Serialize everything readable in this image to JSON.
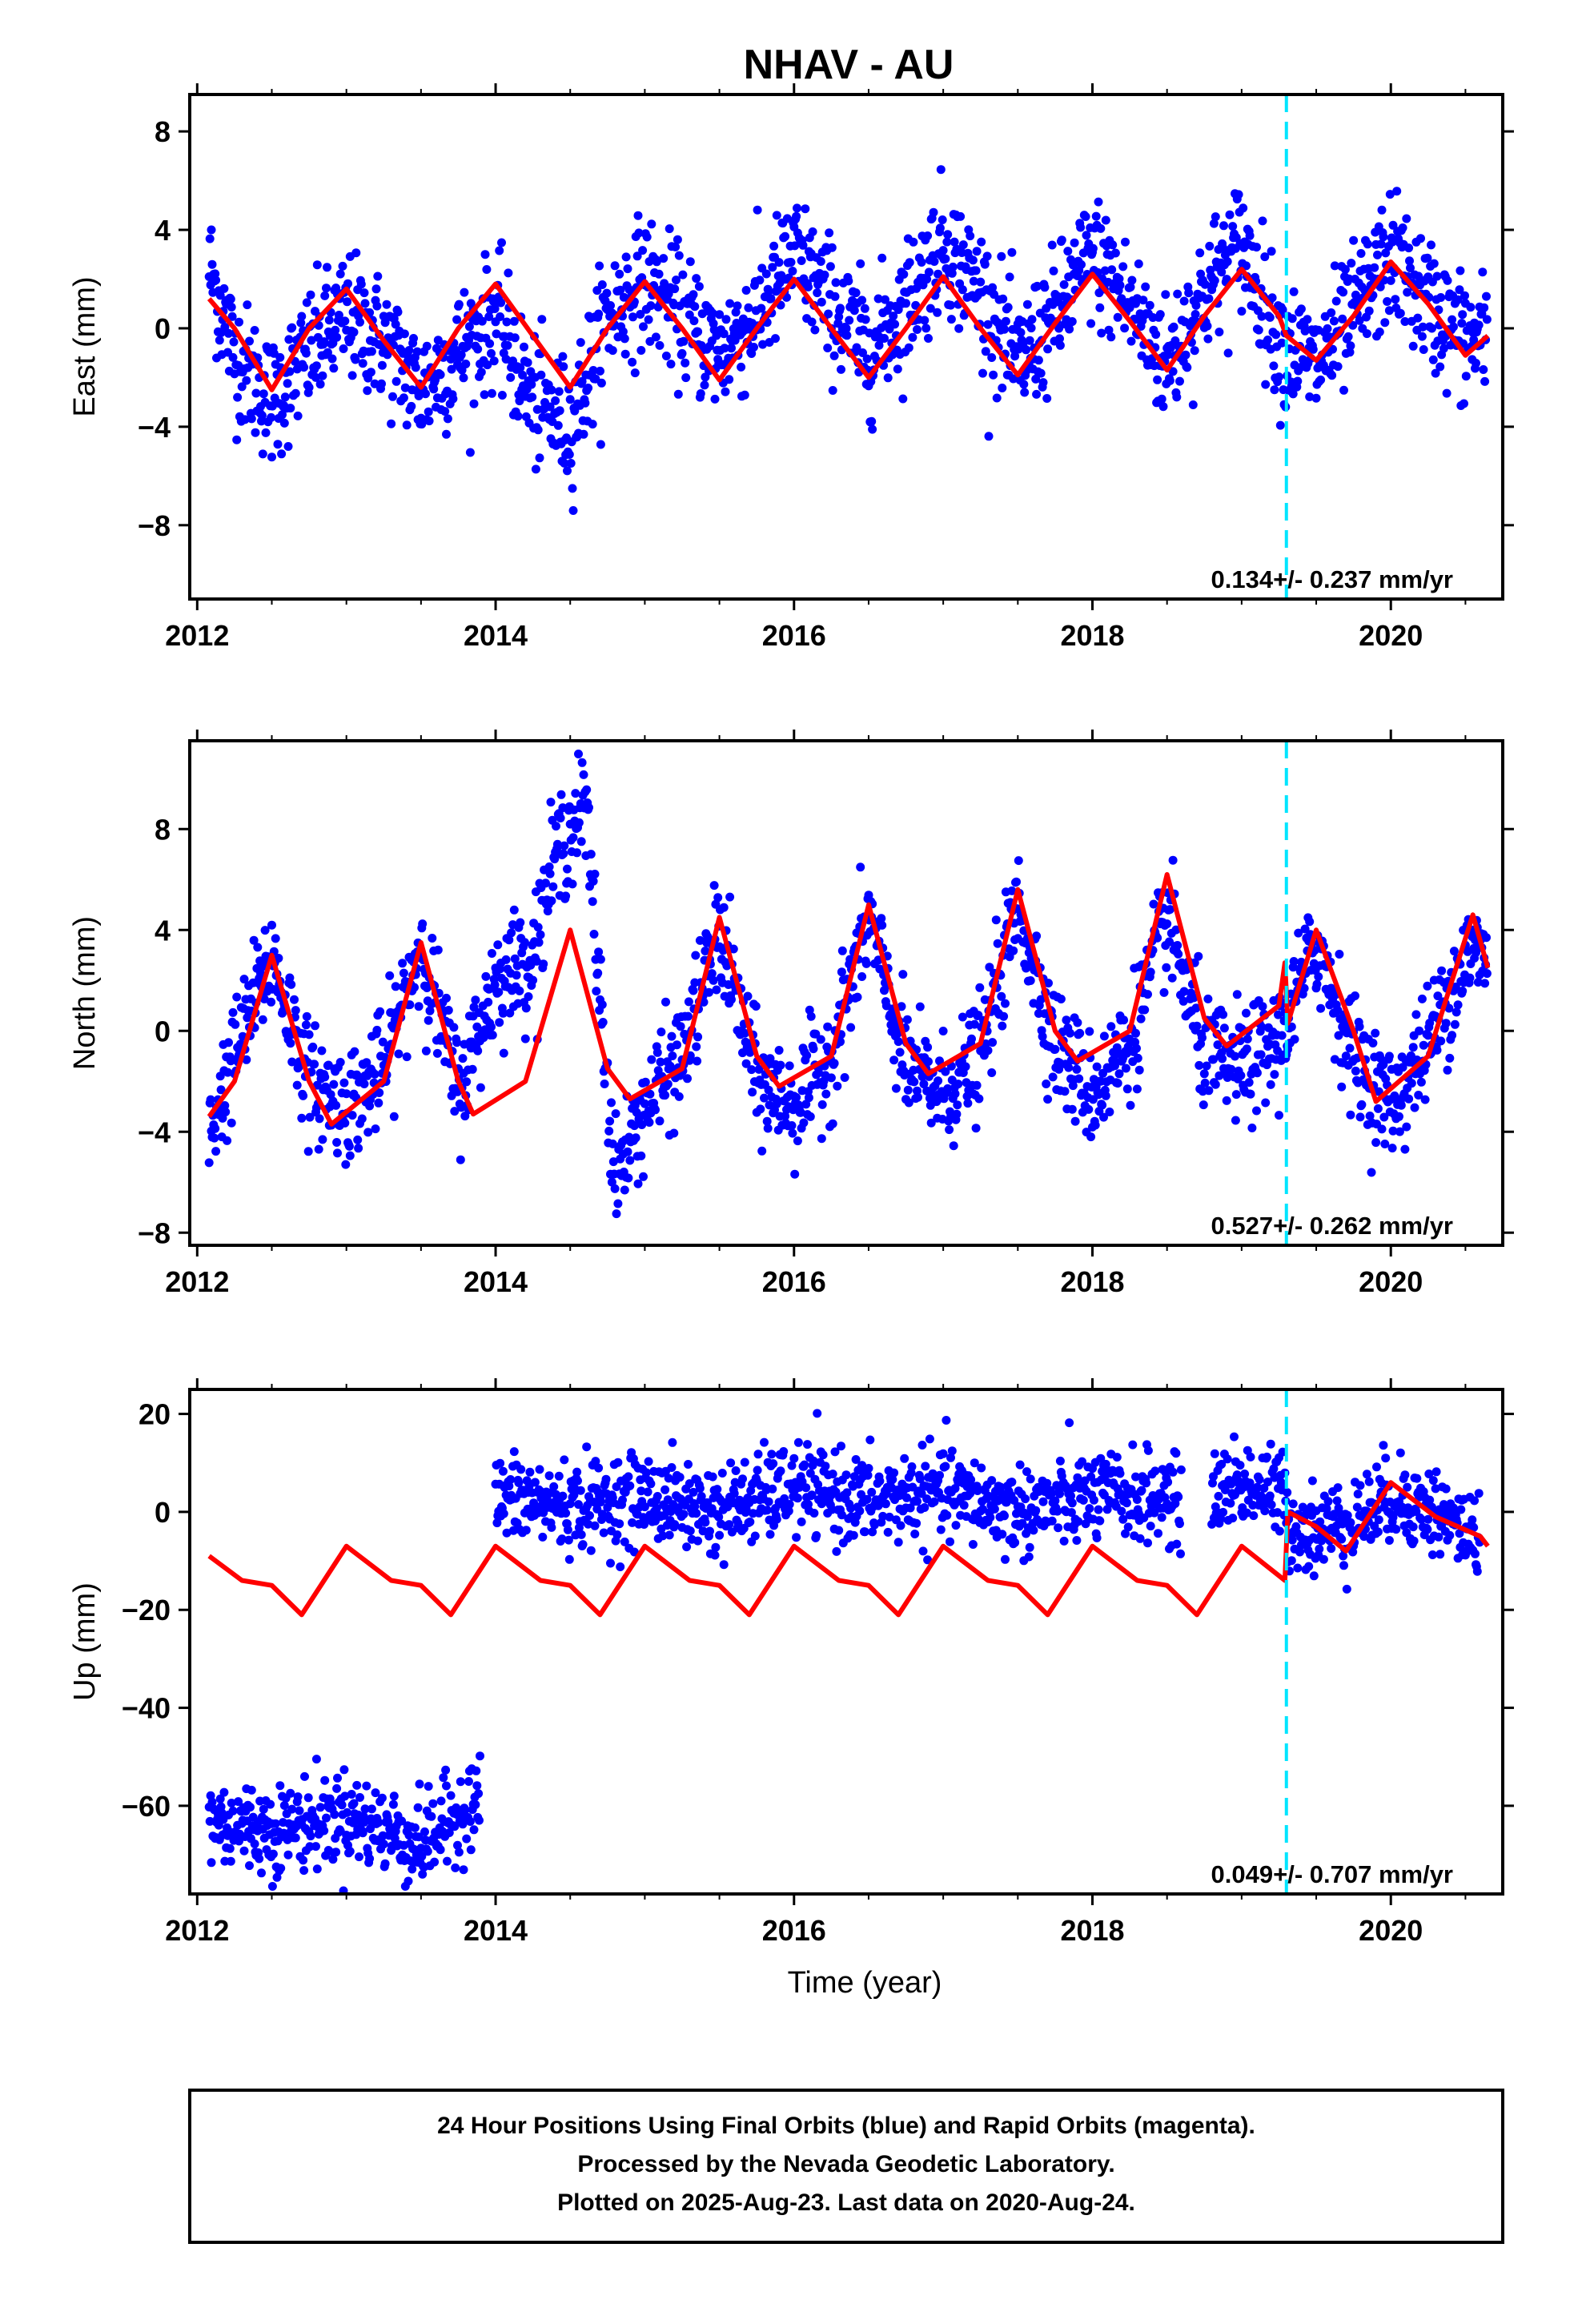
{
  "title": "NHAV - AU",
  "xlabel": "Time (year)",
  "colors": {
    "final_orbits": "#0000ff",
    "model": "#ff0000",
    "event_line": "#00e5ff",
    "frame": "#000000"
  },
  "footer": {
    "line1": "24 Hour Positions Using Final Orbits (blue) and Rapid Orbits (magenta).",
    "line2": "Processed by the Nevada Geodetic Laboratory.",
    "line3": "Plotted on 2025-Aug-23. Last data on 2020-Aug-24."
  },
  "chart_data": [
    {
      "type": "scatter",
      "ylabel": "East (mm)",
      "xlim": [
        2011.95,
        2020.75
      ],
      "ylim": [
        -11,
        9.5
      ],
      "xticks": [
        "2012",
        "2014",
        "2016",
        "2018",
        "2020"
      ],
      "yticks": [
        "8",
        "4",
        "0",
        "−4",
        "−8"
      ],
      "rate_label": "0.134+/- 0.237 mm/yr",
      "event_line_x": 2019.3,
      "grid": false,
      "series": [
        {
          "kind": "points",
          "description_key": "final_orbits",
          "anchors_x": [
            2012.08,
            2012.25,
            2012.5,
            2012.75,
            2013.0,
            2013.25,
            2013.5,
            2013.75,
            2014.0,
            2014.25,
            2014.5,
            2014.75,
            2015.0,
            2015.25,
            2015.5,
            2015.75,
            2016.0,
            2016.25,
            2016.5,
            2016.75,
            2017.0,
            2017.25,
            2017.5,
            2017.75,
            2018.0,
            2018.25,
            2018.5,
            2018.75,
            2019.0,
            2019.25,
            2019.5,
            2019.75,
            2020.0,
            2020.25,
            2020.5,
            2020.65
          ],
          "anchors_y": [
            2.5,
            -1.0,
            -3.0,
            -1.0,
            0.5,
            -0.5,
            -2.5,
            -1.0,
            0.5,
            -3.0,
            -4.0,
            0.5,
            2.0,
            0.5,
            -1.0,
            0.5,
            3.0,
            1.0,
            -1.0,
            1.0,
            3.5,
            1.5,
            -1.5,
            0.5,
            3.0,
            1.0,
            -1.5,
            1.5,
            3.5,
            -0.5,
            -1.5,
            0.5,
            3.0,
            1.0,
            -0.5,
            -0.5
          ],
          "scatter_mm": 1.3
        },
        {
          "kind": "line",
          "description_key": "model",
          "x": [
            2012.08,
            2012.25,
            2012.5,
            2012.75,
            2013.0,
            2013.25,
            2013.5,
            2013.75,
            2014.0,
            2014.25,
            2014.5,
            2014.75,
            2015.0,
            2015.25,
            2015.5,
            2015.75,
            2016.0,
            2016.25,
            2016.5,
            2016.75,
            2017.0,
            2017.25,
            2017.5,
            2017.75,
            2018.0,
            2018.25,
            2018.5,
            2018.75,
            2019.0,
            2019.25,
            2019.3,
            2019.5,
            2019.75,
            2020.0,
            2020.25,
            2020.5,
            2020.65
          ],
          "y": [
            1.2,
            0.0,
            -2.5,
            0.0,
            1.6,
            -0.5,
            -2.4,
            0.0,
            1.8,
            -0.3,
            -2.4,
            0.0,
            1.9,
            0.0,
            -2.1,
            0.0,
            2.0,
            0.0,
            -2.0,
            0.0,
            2.1,
            0.0,
            -1.9,
            0.2,
            2.2,
            0.3,
            -1.7,
            0.5,
            2.4,
            0.5,
            -0.3,
            -1.3,
            0.5,
            2.7,
            1.0,
            -1.1,
            -0.3
          ]
        }
      ]
    },
    {
      "type": "scatter",
      "ylabel": "North (mm)",
      "xlim": [
        2011.95,
        2020.75
      ],
      "ylim": [
        -8.5,
        11.5
      ],
      "xticks": [
        "2012",
        "2014",
        "2016",
        "2018",
        "2020"
      ],
      "yticks": [
        "8",
        "4",
        "0",
        "−4",
        "−8"
      ],
      "rate_label": "0.527+/- 0.262 mm/yr",
      "event_line_x": 2019.3,
      "grid": false,
      "series": [
        {
          "kind": "points",
          "description_key": "final_orbits",
          "anchors_x": [
            2012.08,
            2012.25,
            2012.5,
            2012.75,
            2013.0,
            2013.25,
            2013.5,
            2013.75,
            2014.0,
            2014.25,
            2014.4,
            2014.6,
            2014.8,
            2015.0,
            2015.25,
            2015.5,
            2015.75,
            2016.0,
            2016.25,
            2016.5,
            2016.75,
            2017.0,
            2017.25,
            2017.5,
            2017.75,
            2018.0,
            2018.25,
            2018.5,
            2018.75,
            2019.0,
            2019.25,
            2019.5,
            2019.75,
            2020.0,
            2020.25,
            2020.5,
            2020.65
          ],
          "anchors_y": [
            -4.0,
            -1.0,
            3.0,
            -2.0,
            -3.0,
            -1.5,
            3.5,
            -2.5,
            2.0,
            3.0,
            7.0,
            9.0,
            -6.0,
            -3.0,
            -1.0,
            4.0,
            -2.0,
            -3.0,
            -1.0,
            4.5,
            -1.5,
            -2.5,
            -1.0,
            5.0,
            -0.5,
            -2.5,
            -0.5,
            4.5,
            -1.0,
            -1.5,
            -0.5,
            3.5,
            -1.0,
            -3.0,
            -0.5,
            3.0,
            3.0
          ],
          "scatter_mm": 1.1
        },
        {
          "kind": "line",
          "description_key": "model",
          "x": [
            2012.08,
            2012.25,
            2012.5,
            2012.75,
            2012.9,
            2013.25,
            2013.5,
            2013.75,
            2013.85,
            2014.2,
            2014.5,
            2014.75,
            2014.9,
            2015.25,
            2015.5,
            2015.75,
            2015.9,
            2016.25,
            2016.5,
            2016.75,
            2016.9,
            2017.25,
            2017.5,
            2017.75,
            2017.9,
            2018.25,
            2018.5,
            2018.75,
            2018.9,
            2019.25,
            2019.29,
            2019.31,
            2019.5,
            2019.75,
            2019.9,
            2020.25,
            2020.55,
            2020.65
          ],
          "y": [
            -3.4,
            -2.0,
            3.0,
            -2.0,
            -3.7,
            -2.0,
            3.5,
            -2.0,
            -3.3,
            -2.0,
            4.0,
            -1.5,
            -2.7,
            -1.5,
            4.5,
            -1.0,
            -2.2,
            -1.0,
            5.0,
            -0.5,
            -1.7,
            -0.5,
            5.6,
            0.0,
            -1.2,
            0.0,
            6.2,
            0.5,
            -0.6,
            1.0,
            2.7,
            0.3,
            4.0,
            0.0,
            -2.8,
            -1.0,
            4.6,
            2.5
          ]
        }
      ]
    },
    {
      "type": "scatter",
      "ylabel": "Up (mm)",
      "xlabel": "Time (year)",
      "xlim": [
        2011.95,
        2020.75
      ],
      "ylim": [
        -78,
        25
      ],
      "xticks": [
        "2012",
        "2014",
        "2016",
        "2018",
        "2020"
      ],
      "yticks": [
        "20",
        "0",
        "−20",
        "−40",
        "−60"
      ],
      "rate_label": "0.049+/- 0.707 mm/yr",
      "event_line_x": 2019.3,
      "grid": false,
      "series": [
        {
          "kind": "points",
          "description_key": "final_orbits",
          "segments": [
            {
              "x": [
                2012.08,
                2012.5,
                2013.0,
                2013.5,
                2013.9
              ],
              "y": [
                -63,
                -65,
                -62,
                -68,
                -58
              ]
            },
            {
              "x": [
                2014.0,
                2014.5,
                2015.0,
                2015.5,
                2016.0,
                2016.5,
                2017.0,
                2017.5,
                2018.0,
                2018.5,
                2018.6
              ],
              "y": [
                3,
                1,
                3,
                0,
                5,
                2,
                4,
                0,
                3,
                3,
                0
              ]
            },
            {
              "x": [
                2018.8,
                2019.0,
                2019.3
              ],
              "y": [
                4,
                6,
                3
              ]
            },
            {
              "x": [
                2019.3,
                2019.5,
                2019.8,
                2020.0,
                2020.3,
                2020.6
              ],
              "y": [
                -2,
                -4,
                -1,
                3,
                0,
                -6
              ]
            }
          ],
          "scatter_mm": 4.5
        },
        {
          "kind": "line",
          "description_key": "model",
          "x": [
            2012.08,
            2012.3,
            2012.5,
            2012.7,
            2013.0,
            2013.3,
            2013.5,
            2013.7,
            2014.0,
            2014.3,
            2014.5,
            2014.7,
            2015.0,
            2015.3,
            2015.5,
            2015.7,
            2016.0,
            2016.3,
            2016.5,
            2016.7,
            2017.0,
            2017.3,
            2017.5,
            2017.7,
            2018.0,
            2018.3,
            2018.5,
            2018.7,
            2019.0,
            2019.29,
            2019.31,
            2019.5,
            2019.7,
            2020.0,
            2020.3,
            2020.6,
            2020.65
          ],
          "y": [
            -9,
            -14,
            -15,
            -21,
            -7,
            -14,
            -15,
            -21,
            -7,
            -14,
            -15,
            -21,
            -7,
            -14,
            -15,
            -21,
            -7,
            -14,
            -15,
            -21,
            -7,
            -14,
            -15,
            -21,
            -7,
            -14,
            -15,
            -21,
            -7,
            -14,
            0,
            -3,
            -8,
            6,
            -1,
            -5,
            -7
          ]
        }
      ]
    }
  ]
}
